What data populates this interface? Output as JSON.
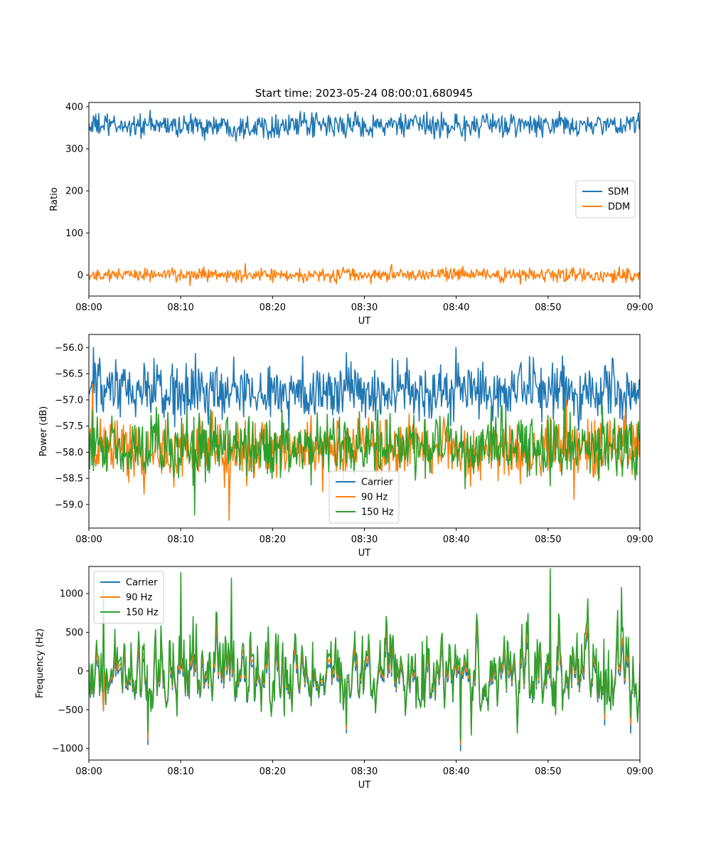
{
  "figure": {
    "title": "Start time: 2023-05-24 08:00:01.680945"
  },
  "colors": {
    "blue": "#1f77b4",
    "orange": "#ff7f0e",
    "green": "#2ca02c"
  },
  "chart_data": [
    {
      "type": "line",
      "title": "Start time: 2023-05-24 08:00:01.680945",
      "xlabel": "UT",
      "ylabel": "Ratio",
      "x_ticks": [
        "08:00",
        "08:10",
        "08:20",
        "08:30",
        "08:40",
        "08:50",
        "09:00"
      ],
      "xlim_minutes": [
        0,
        60
      ],
      "ylim": [
        -50,
        410
      ],
      "y_ticks": [
        0,
        100,
        200,
        300,
        400
      ],
      "legend": "center-right",
      "series": [
        {
          "name": "SDM",
          "color": "#1f77b4",
          "mean": 355,
          "amplitude": 14,
          "anchors": [
            [
              0,
              360
            ],
            [
              3,
              340
            ],
            [
              8,
              362
            ],
            [
              16,
              318
            ],
            [
              22,
              372
            ],
            [
              29,
              388
            ],
            [
              33,
              372
            ],
            [
              41,
              318
            ],
            [
              46,
              382
            ],
            [
              50,
              362
            ],
            [
              54,
              364
            ],
            [
              60,
              345
            ]
          ]
        },
        {
          "name": "DDM",
          "color": "#ff7f0e",
          "mean": 0,
          "amplitude": 8,
          "anchors": [
            [
              0,
              -3
            ],
            [
              5,
              12
            ],
            [
              11,
              -25
            ],
            [
              17,
              27
            ],
            [
              20,
              -18
            ],
            [
              30,
              5
            ],
            [
              33,
              25
            ],
            [
              38,
              0
            ],
            [
              47,
              -22
            ],
            [
              52,
              15
            ],
            [
              57,
              -18
            ],
            [
              60,
              5
            ]
          ]
        }
      ]
    },
    {
      "type": "line",
      "xlabel": "UT",
      "ylabel": "Power (dB)",
      "x_ticks": [
        "08:00",
        "08:10",
        "08:20",
        "08:30",
        "08:40",
        "08:50",
        "09:00"
      ],
      "xlim_minutes": [
        0,
        60
      ],
      "ylim": [
        -59.45,
        -55.75
      ],
      "y_ticks": [
        -59.0,
        -58.5,
        -58.0,
        -57.5,
        -57.0,
        -56.5,
        -56.0
      ],
      "legend": "lower-center",
      "series": [
        {
          "name": "Carrier",
          "color": "#1f77b4",
          "mean": -56.85,
          "amplitude": 0.28,
          "anchors": [
            [
              0,
              -56.9
            ],
            [
              0.5,
              -56.0
            ],
            [
              6,
              -56.3
            ],
            [
              10,
              -57.3
            ],
            [
              15,
              -56.9
            ],
            [
              28,
              -56.1
            ],
            [
              40,
              -56.0
            ],
            [
              44,
              -57.4
            ],
            [
              51,
              -56.4
            ],
            [
              57,
              -56.2
            ],
            [
              60,
              -56.7
            ]
          ]
        },
        {
          "name": "90 Hz",
          "color": "#ff7f0e",
          "mean": -57.95,
          "amplitude": 0.28,
          "anchors": [
            [
              0,
              -57.6
            ],
            [
              0.4,
              -56.7
            ],
            [
              6,
              -58.8
            ],
            [
              12,
              -57.3
            ],
            [
              15.3,
              -59.3
            ],
            [
              27,
              -57.4
            ],
            [
              38,
              -58.0
            ],
            [
              47,
              -58.6
            ],
            [
              52,
              -57.0
            ],
            [
              52.8,
              -58.9
            ],
            [
              60,
              -58.1
            ]
          ]
        },
        {
          "name": "150 Hz",
          "color": "#2ca02c",
          "mean": -57.9,
          "amplitude": 0.3,
          "anchors": [
            [
              0,
              -57.7
            ],
            [
              0.4,
              -57.2
            ],
            [
              11.5,
              -59.2
            ],
            [
              17,
              -57.8
            ],
            [
              21,
              -57.2
            ],
            [
              28,
              -58.2
            ],
            [
              35,
              -57.5
            ],
            [
              41,
              -58.7
            ],
            [
              50,
              -57.3
            ],
            [
              54,
              -57.6
            ],
            [
              60,
              -57.8
            ]
          ]
        }
      ]
    },
    {
      "type": "line",
      "xlabel": "UT",
      "ylabel": "Frequency (Hz)",
      "x_ticks": [
        "08:00",
        "08:10",
        "08:20",
        "08:30",
        "08:40",
        "08:50",
        "09:00"
      ],
      "xlim_minutes": [
        0,
        60
      ],
      "ylim": [
        -1150,
        1350
      ],
      "y_ticks": [
        -1000,
        -500,
        0,
        500,
        1000
      ],
      "legend": "upper-left",
      "series": [
        {
          "name": "Carrier",
          "color": "#1f77b4",
          "mean": -80,
          "amplitude": 300,
          "anchors": [
            [
              0,
              0
            ],
            [
              6.4,
              -950
            ],
            [
              10,
              200
            ],
            [
              15.5,
              400
            ],
            [
              28,
              -800
            ],
            [
              40.5,
              -1030
            ],
            [
              50.2,
              350
            ],
            [
              56.2,
              -700
            ],
            [
              59,
              -800
            ],
            [
              60,
              -100
            ]
          ]
        },
        {
          "name": "90 Hz",
          "color": "#ff7f0e",
          "mean": -30,
          "amplitude": 330,
          "anchors": [
            [
              0,
              50
            ],
            [
              6.4,
              -880
            ],
            [
              10,
              500
            ],
            [
              15.5,
              600
            ],
            [
              28,
              -750
            ],
            [
              40.5,
              -950
            ],
            [
              50.2,
              700
            ],
            [
              56.2,
              -620
            ],
            [
              59,
              -700
            ],
            [
              60,
              0
            ]
          ]
        },
        {
          "name": "150 Hz",
          "color": "#2ca02c",
          "mean": 20,
          "amplitude": 380,
          "anchors": [
            [
              0,
              100
            ],
            [
              1.6,
              1050
            ],
            [
              6.4,
              -800
            ],
            [
              10,
              1270
            ],
            [
              15.5,
              1200
            ],
            [
              28,
              -700
            ],
            [
              40.5,
              -900
            ],
            [
              50.2,
              1320
            ],
            [
              56.2,
              -550
            ],
            [
              58,
              1080
            ],
            [
              59,
              -600
            ],
            [
              60,
              100
            ]
          ]
        }
      ]
    }
  ]
}
